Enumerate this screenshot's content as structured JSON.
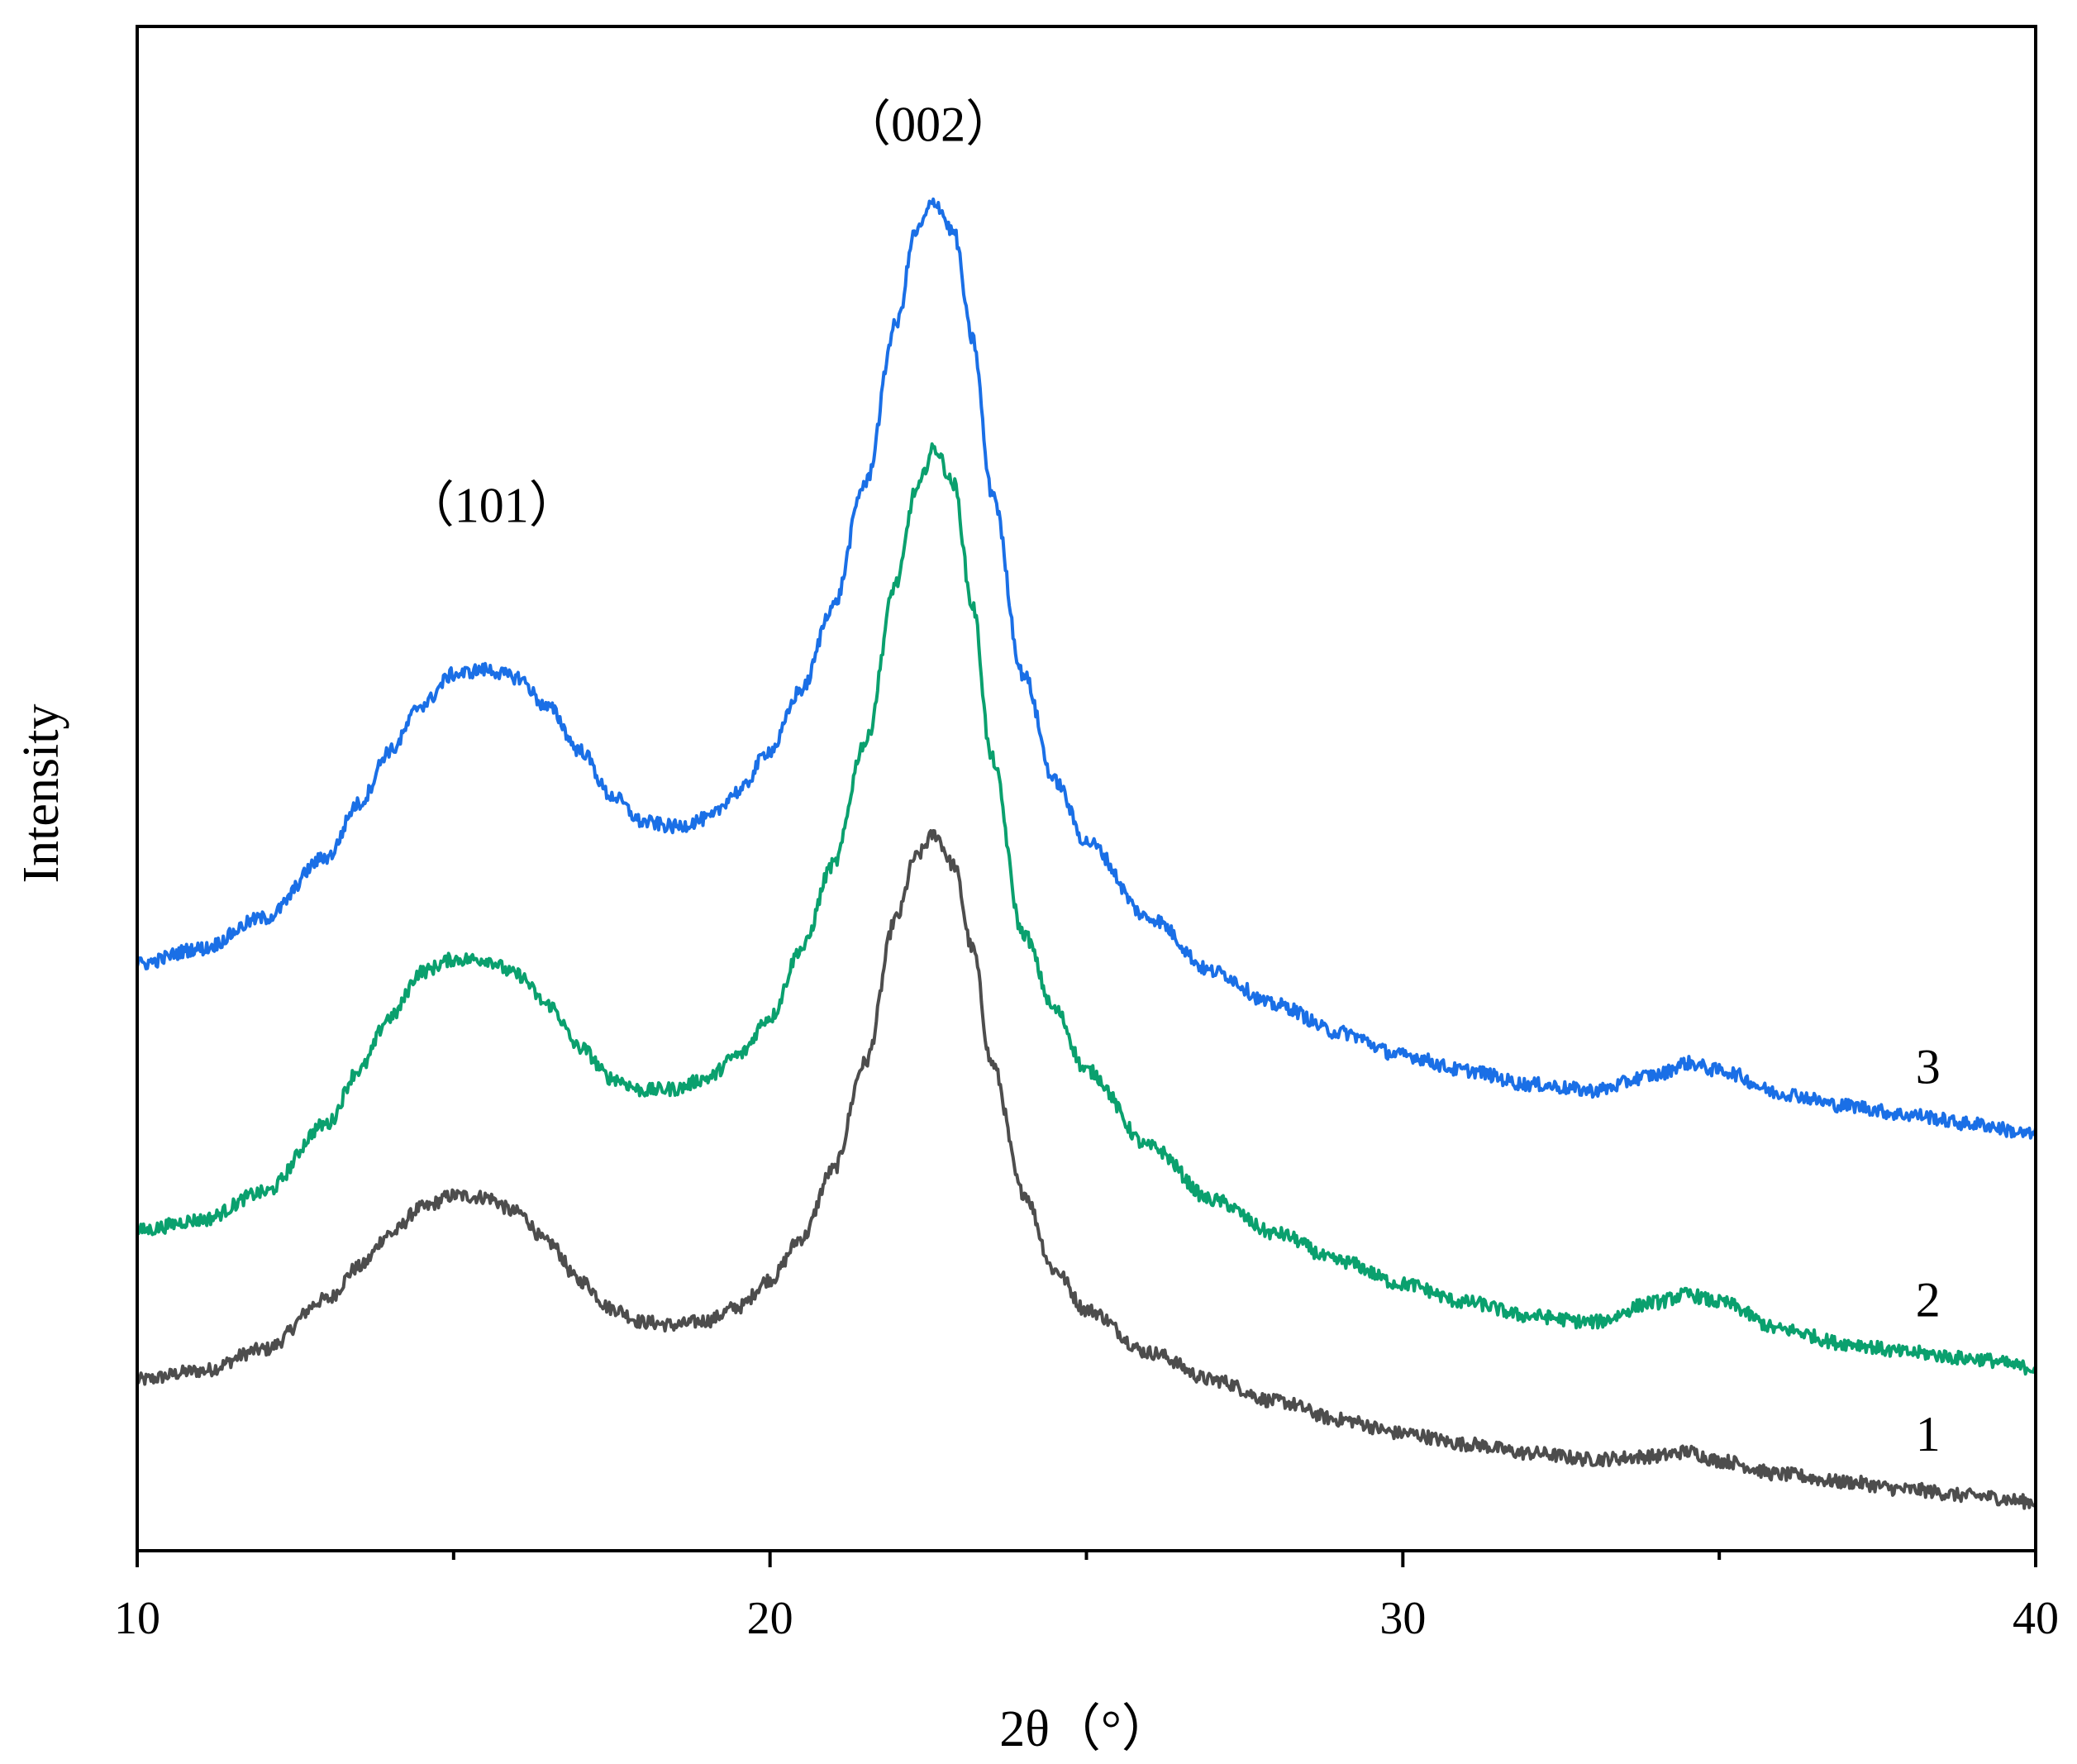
{
  "chart_data": {
    "type": "line",
    "title": "",
    "xlabel": "2θ（°）",
    "ylabel": "Intensity",
    "xlim": [
      10,
      40
    ],
    "ylim": [
      0,
      100
    ],
    "x_ticks": [
      10,
      20,
      30,
      40
    ],
    "x_tick_labels": [
      "10",
      "20",
      "30",
      "40"
    ],
    "y_ticks_shown": false,
    "grid": false,
    "legend": "none",
    "annotations": [
      {
        "text": "（101）",
        "x": 15.6,
        "y": 67.5
      },
      {
        "text": "（002）",
        "x": 22.5,
        "y": 92.5
      }
    ],
    "series": [
      {
        "name": "1",
        "color": "#4d4d4d",
        "x": [
          10,
          11,
          12,
          13,
          13.5,
          14,
          14.5,
          15,
          15.5,
          16,
          16.5,
          17,
          17.5,
          18,
          18.5,
          19,
          19.5,
          20,
          20.5,
          21,
          21.5,
          22,
          22.3,
          22.6,
          22.9,
          23.2,
          23.5,
          24,
          24.5,
          25,
          26,
          27,
          28,
          29,
          30,
          31,
          32,
          33,
          34,
          34.5,
          35,
          36,
          37,
          38,
          39,
          40
        ],
        "y": [
          11.2,
          11.8,
          13.2,
          16.5,
          18.6,
          20.8,
          22.5,
          23.3,
          23.2,
          22.2,
          20.2,
          17.7,
          15.9,
          15.0,
          14.8,
          15.1,
          16.0,
          17.8,
          20.5,
          25.0,
          32.0,
          41.5,
          45.5,
          47.0,
          45.0,
          39.5,
          32.0,
          23.5,
          18.4,
          15.8,
          13.0,
          11.2,
          9.8,
          8.6,
          7.7,
          7.0,
          6.4,
          6.0,
          6.2,
          6.5,
          5.9,
          5.0,
          4.5,
          4.0,
          3.6,
          3.2
        ]
      },
      {
        "name": "2",
        "color": "#0aa06e",
        "x": [
          10,
          11,
          12,
          13,
          13.5,
          14,
          14.5,
          15,
          15.5,
          16,
          16.5,
          17,
          17.5,
          18,
          18.5,
          19,
          19.5,
          20,
          20.5,
          21,
          21.5,
          22,
          22.3,
          22.6,
          22.9,
          23.2,
          23.5,
          24,
          24.5,
          25,
          26,
          27,
          28,
          29,
          30,
          31,
          32,
          33,
          34,
          34.5,
          35,
          36,
          37,
          38,
          39,
          40
        ],
        "y": [
          21.0,
          21.7,
          23.5,
          28.0,
          31.5,
          35.0,
          38.0,
          38.8,
          38.8,
          37.8,
          35.8,
          33.0,
          31.0,
          30.2,
          30.3,
          31.0,
          32.5,
          35.0,
          39.5,
          45.0,
          53.0,
          63.5,
          69.5,
          72.3,
          70.0,
          62.0,
          52.0,
          40.5,
          35.5,
          31.5,
          26.5,
          23.0,
          20.8,
          19.0,
          17.5,
          16.3,
          15.4,
          15.0,
          16.3,
          16.8,
          16.3,
          14.5,
          13.6,
          13.0,
          12.6,
          12.0
        ]
      },
      {
        "name": "3",
        "color": "#1a6fe6",
        "x": [
          10,
          11,
          12,
          13,
          13.5,
          14,
          14.5,
          15,
          15.5,
          16,
          16.5,
          17,
          17.5,
          18,
          18.5,
          19,
          19.5,
          20,
          20.5,
          21,
          21.5,
          22,
          22.3,
          22.6,
          22.9,
          23.2,
          23.5,
          24,
          24.5,
          25,
          26,
          27,
          28,
          29,
          30,
          31,
          32,
          33,
          34,
          34.5,
          35,
          36,
          37,
          38,
          39,
          40
        ],
        "y": [
          38.5,
          39.5,
          41.5,
          45.5,
          49.0,
          52.5,
          55.5,
          57.5,
          57.8,
          57.3,
          55.3,
          52.5,
          49.5,
          47.8,
          47.5,
          48.0,
          49.8,
          52.5,
          56.5,
          62.0,
          70.0,
          80.5,
          86.5,
          88.5,
          86.5,
          79.5,
          69.5,
          57.5,
          50.5,
          46.5,
          41.5,
          38.0,
          35.8,
          34.0,
          32.5,
          31.5,
          30.6,
          30.2,
          31.2,
          32.0,
          31.5,
          30.0,
          29.2,
          28.6,
          28.0,
          27.3
        ]
      }
    ]
  }
}
